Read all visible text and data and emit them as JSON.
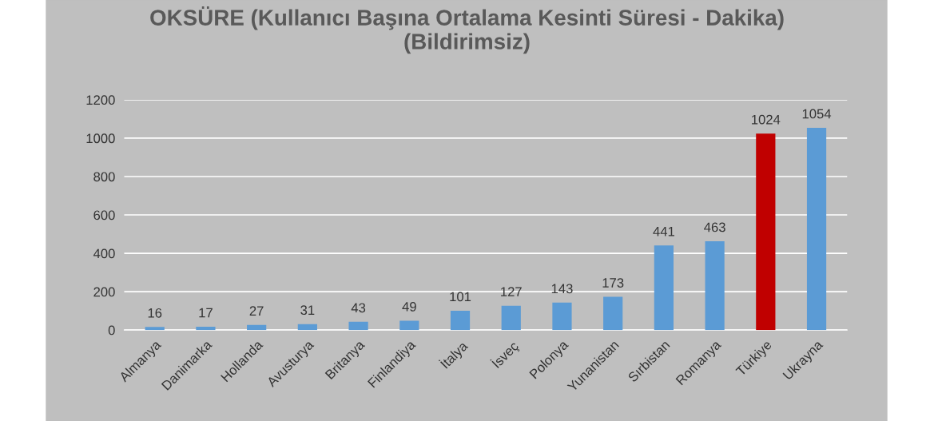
{
  "chart_data": {
    "type": "bar",
    "title": "OKSÜRE (Kullanıcı Başına Ortalama Kesinti Süresi - Dakika)\n(Bildirimsiz)",
    "categories": [
      "Almanya",
      "Danimarka",
      "Hollanda",
      "Avusturya",
      "Britanya",
      "Finlandiya",
      "İtalya",
      "İsveç",
      "Polonya",
      "Yunanistan",
      "Sırbistan",
      "Romanya",
      "Türkiye",
      "Ukrayna"
    ],
    "values": [
      16,
      17,
      27,
      31,
      43,
      49,
      101,
      127,
      143,
      173,
      441,
      463,
      1024,
      1054
    ],
    "colors": [
      "#5b9bd5",
      "#5b9bd5",
      "#5b9bd5",
      "#5b9bd5",
      "#5b9bd5",
      "#5b9bd5",
      "#5b9bd5",
      "#5b9bd5",
      "#5b9bd5",
      "#5b9bd5",
      "#5b9bd5",
      "#5b9bd5",
      "#c00000",
      "#5b9bd5"
    ],
    "ylim": [
      0,
      1200
    ],
    "yticks": [
      0,
      200,
      400,
      600,
      800,
      1000,
      1200
    ],
    "grid": "y",
    "data_labels": true
  }
}
